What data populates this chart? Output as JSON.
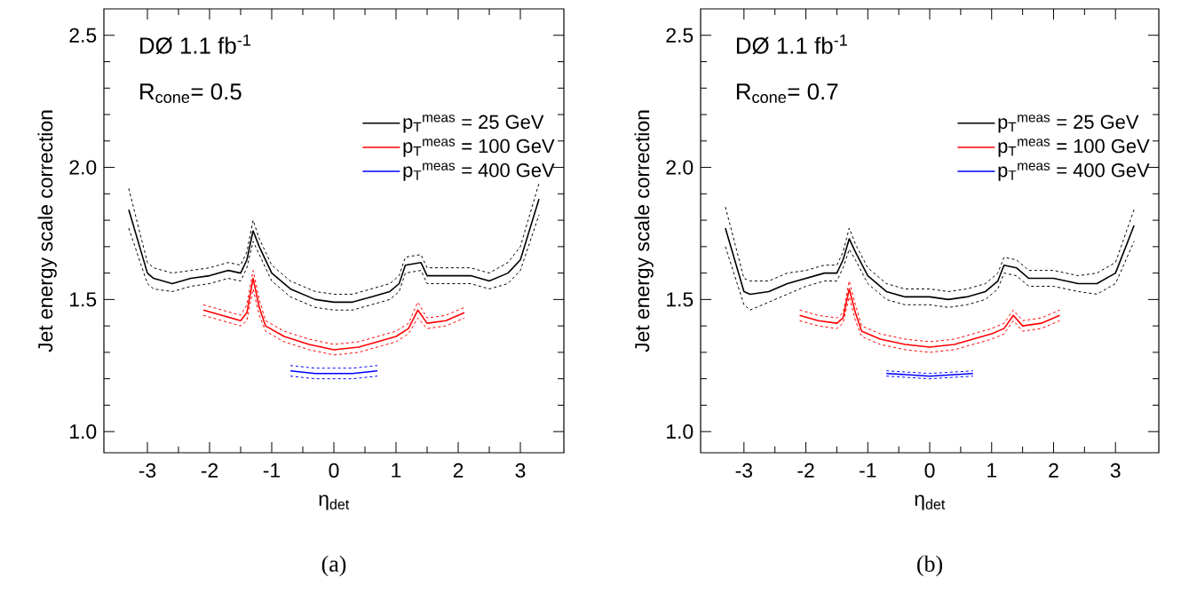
{
  "chart_data": [
    {
      "type": "line",
      "xlabel": "η$_{det}$",
      "ylabel": "Jet energy scale correction",
      "xlim": [
        -3.7,
        3.7
      ],
      "ylim": [
        0.92,
        2.6
      ],
      "xticks": [
        -3,
        -2,
        -1,
        0,
        1,
        2,
        3
      ],
      "yticks": [
        {
          "value": 1.0,
          "label": "1.0"
        },
        {
          "value": 1.5,
          "label": "1.5"
        },
        {
          "value": 2.0,
          "label": "2.0"
        },
        {
          "value": 2.5,
          "label": "2.5"
        }
      ],
      "legend": "top right",
      "line_style": "solid",
      "annotations": [
        "DØ  1.1 fb$^{-1}$",
        "R$_{cone}$= 0.5",
        "(a)"
      ],
      "series": [
        {
          "name": "p$_{T}$$^{meas}$ = 25 GeV",
          "color": "#000000",
          "x": [
            -3.3,
            -3.0,
            -2.9,
            -2.6,
            -2.3,
            -2.0,
            -1.7,
            -1.5,
            -1.4,
            -1.3,
            -1.2,
            -1.0,
            -0.7,
            -0.3,
            0,
            0.3,
            0.6,
            0.9,
            1.05,
            1.15,
            1.4,
            1.5,
            1.8,
            2.2,
            2.5,
            2.8,
            3.0,
            3.3
          ],
          "values": [
            1.84,
            1.6,
            1.58,
            1.56,
            1.58,
            1.59,
            1.61,
            1.6,
            1.65,
            1.76,
            1.7,
            1.6,
            1.54,
            1.5,
            1.49,
            1.49,
            1.51,
            1.53,
            1.56,
            1.63,
            1.64,
            1.59,
            1.59,
            1.59,
            1.57,
            1.6,
            1.65,
            1.88
          ]
        },
        {
          "name": "p$_{T}$$^{meas}$ = 100 GeV",
          "color": "#ff0000",
          "x": [
            -2.1,
            -1.8,
            -1.5,
            -1.4,
            -1.3,
            -1.2,
            -1.1,
            -0.8,
            -0.4,
            0,
            0.4,
            0.7,
            1.0,
            1.2,
            1.35,
            1.5,
            1.8,
            2.1
          ],
          "values": [
            1.46,
            1.44,
            1.42,
            1.45,
            1.58,
            1.47,
            1.4,
            1.36,
            1.33,
            1.31,
            1.32,
            1.34,
            1.36,
            1.39,
            1.46,
            1.41,
            1.42,
            1.45
          ]
        },
        {
          "name": "p$_{T}$$^{meas}$ = 400 GeV",
          "color": "#0000ff",
          "x": [
            -0.7,
            -0.3,
            0,
            0.3,
            0.7
          ],
          "values": [
            1.23,
            1.22,
            1.22,
            1.22,
            1.23
          ]
        },
        {
          "color": "#000000",
          "line_style": "dashed",
          "x": [
            -3.3,
            -3.0,
            -2.9,
            -2.6,
            -2.3,
            -2.0,
            -1.7,
            -1.5,
            -1.4,
            -1.3,
            -1.2,
            -1.0,
            -0.7,
            -0.3,
            0,
            0.3,
            0.6,
            0.9,
            1.05,
            1.15,
            1.4,
            1.5,
            1.8,
            2.2,
            2.5,
            2.8,
            3.0,
            3.3
          ],
          "values": [
            1.77,
            1.56,
            1.54,
            1.53,
            1.55,
            1.56,
            1.58,
            1.57,
            1.62,
            1.72,
            1.67,
            1.57,
            1.51,
            1.47,
            1.46,
            1.46,
            1.48,
            1.5,
            1.53,
            1.6,
            1.61,
            1.56,
            1.56,
            1.56,
            1.54,
            1.56,
            1.61,
            1.82
          ]
        },
        {
          "color": "#000000",
          "line_style": "dashed",
          "x": [
            -3.3,
            -3.0,
            -2.9,
            -2.6,
            -2.3,
            -2.0,
            -1.7,
            -1.5,
            -1.4,
            -1.3,
            -1.2,
            -1.0,
            -0.7,
            -0.3,
            0,
            0.3,
            0.6,
            0.9,
            1.05,
            1.15,
            1.4,
            1.5,
            1.8,
            2.2,
            2.5,
            2.8,
            3.0,
            3.3
          ],
          "values": [
            1.92,
            1.64,
            1.62,
            1.6,
            1.61,
            1.62,
            1.64,
            1.63,
            1.68,
            1.8,
            1.73,
            1.63,
            1.57,
            1.53,
            1.52,
            1.52,
            1.54,
            1.56,
            1.59,
            1.66,
            1.67,
            1.62,
            1.62,
            1.62,
            1.6,
            1.64,
            1.7,
            1.94
          ]
        },
        {
          "color": "#ff0000",
          "line_style": "dashed",
          "x": [
            -2.1,
            -1.8,
            -1.5,
            -1.4,
            -1.3,
            -1.2,
            -1.1,
            -0.8,
            -0.4,
            0,
            0.4,
            0.7,
            1.0,
            1.2,
            1.35,
            1.5,
            1.8,
            2.1
          ],
          "values": [
            1.44,
            1.42,
            1.4,
            1.42,
            1.54,
            1.44,
            1.38,
            1.34,
            1.31,
            1.29,
            1.3,
            1.32,
            1.34,
            1.37,
            1.43,
            1.39,
            1.4,
            1.43
          ]
        },
        {
          "color": "#ff0000",
          "line_style": "dashed",
          "x": [
            -2.1,
            -1.8,
            -1.5,
            -1.4,
            -1.3,
            -1.2,
            -1.1,
            -0.8,
            -0.4,
            0,
            0.4,
            0.7,
            1.0,
            1.2,
            1.35,
            1.5,
            1.8,
            2.1
          ],
          "values": [
            1.48,
            1.46,
            1.44,
            1.48,
            1.61,
            1.5,
            1.42,
            1.38,
            1.35,
            1.33,
            1.34,
            1.36,
            1.38,
            1.41,
            1.49,
            1.43,
            1.44,
            1.47
          ]
        },
        {
          "color": "#0000ff",
          "line_style": "dashed",
          "x": [
            -0.7,
            -0.3,
            0,
            0.3,
            0.7
          ],
          "values": [
            1.21,
            1.2,
            1.2,
            1.2,
            1.21
          ]
        },
        {
          "color": "#0000ff",
          "line_style": "dashed",
          "x": [
            -0.7,
            -0.3,
            0,
            0.3,
            0.7
          ],
          "values": [
            1.25,
            1.24,
            1.24,
            1.24,
            1.25
          ]
        }
      ]
    },
    {
      "type": "line",
      "xlabel": "η$_{det}$",
      "ylabel": "Jet energy scale correction",
      "xlim": [
        -3.7,
        3.7
      ],
      "ylim": [
        0.92,
        2.6
      ],
      "xticks": [
        -3,
        -2,
        -1,
        0,
        1,
        2,
        3
      ],
      "yticks": [
        {
          "value": 1.0,
          "label": "1.0"
        },
        {
          "value": 1.5,
          "label": "1.5"
        },
        {
          "value": 2.0,
          "label": "2.0"
        },
        {
          "value": 2.5,
          "label": "2.5"
        }
      ],
      "legend": "top right",
      "line_style": "solid",
      "annotations": [
        "DØ  1.1 fb$^{-1}$",
        "R$_{cone}$= 0.7",
        "(b)"
      ],
      "series": [
        {
          "name": "p$_{T}$$^{meas}$ = 25 GeV",
          "color": "#000000",
          "x": [
            -3.3,
            -3.0,
            -2.9,
            -2.6,
            -2.3,
            -2.0,
            -1.7,
            -1.5,
            -1.4,
            -1.3,
            -1.2,
            -1.0,
            -0.7,
            -0.4,
            0,
            0.3,
            0.6,
            0.9,
            1.1,
            1.2,
            1.4,
            1.6,
            2.0,
            2.4,
            2.7,
            3.0,
            3.3
          ],
          "values": [
            1.77,
            1.53,
            1.52,
            1.53,
            1.56,
            1.58,
            1.6,
            1.6,
            1.65,
            1.73,
            1.68,
            1.59,
            1.53,
            1.51,
            1.51,
            1.5,
            1.51,
            1.53,
            1.57,
            1.63,
            1.62,
            1.58,
            1.58,
            1.56,
            1.56,
            1.6,
            1.78
          ]
        },
        {
          "name": "p$_{T}$$^{meas}$ = 100 GeV",
          "color": "#ff0000",
          "x": [
            -2.1,
            -1.8,
            -1.5,
            -1.4,
            -1.3,
            -1.2,
            -1.1,
            -0.8,
            -0.4,
            0,
            0.4,
            0.7,
            1.0,
            1.2,
            1.35,
            1.5,
            1.8,
            2.1
          ],
          "values": [
            1.44,
            1.42,
            1.41,
            1.43,
            1.54,
            1.45,
            1.38,
            1.35,
            1.33,
            1.32,
            1.33,
            1.35,
            1.37,
            1.39,
            1.44,
            1.4,
            1.41,
            1.44
          ]
        },
        {
          "name": "p$_{T}$$^{meas}$ = 400 GeV",
          "color": "#0000ff",
          "x": [
            -0.7,
            0,
            0.7
          ],
          "values": [
            1.22,
            1.21,
            1.22
          ]
        },
        {
          "color": "#000000",
          "line_style": "dashed",
          "x": [
            -3.3,
            -3.0,
            -2.9,
            -2.6,
            -2.3,
            -2.0,
            -1.7,
            -1.5,
            -1.4,
            -1.3,
            -1.2,
            -1.0,
            -0.7,
            -0.4,
            0,
            0.3,
            0.6,
            0.9,
            1.1,
            1.2,
            1.4,
            1.6,
            2.0,
            2.4,
            2.7,
            3.0,
            3.3
          ],
          "values": [
            1.7,
            1.48,
            1.46,
            1.49,
            1.52,
            1.55,
            1.57,
            1.57,
            1.62,
            1.69,
            1.65,
            1.56,
            1.5,
            1.48,
            1.48,
            1.47,
            1.48,
            1.5,
            1.54,
            1.6,
            1.59,
            1.55,
            1.55,
            1.53,
            1.52,
            1.56,
            1.72
          ]
        },
        {
          "color": "#000000",
          "line_style": "dashed",
          "x": [
            -3.3,
            -3.0,
            -2.9,
            -2.6,
            -2.3,
            -2.0,
            -1.7,
            -1.5,
            -1.4,
            -1.3,
            -1.2,
            -1.0,
            -0.7,
            -0.4,
            0,
            0.3,
            0.6,
            0.9,
            1.1,
            1.2,
            1.4,
            1.6,
            2.0,
            2.4,
            2.7,
            3.0,
            3.3
          ],
          "values": [
            1.85,
            1.58,
            1.57,
            1.57,
            1.6,
            1.61,
            1.63,
            1.63,
            1.68,
            1.77,
            1.71,
            1.62,
            1.56,
            1.54,
            1.54,
            1.53,
            1.54,
            1.56,
            1.6,
            1.66,
            1.65,
            1.61,
            1.61,
            1.59,
            1.6,
            1.64,
            1.84
          ]
        },
        {
          "color": "#ff0000",
          "line_style": "dashed",
          "x": [
            -2.1,
            -1.8,
            -1.5,
            -1.4,
            -1.3,
            -1.2,
            -1.1,
            -0.8,
            -0.4,
            0,
            0.4,
            0.7,
            1.0,
            1.2,
            1.35,
            1.5,
            1.8,
            2.1
          ],
          "values": [
            1.42,
            1.4,
            1.39,
            1.41,
            1.51,
            1.42,
            1.36,
            1.33,
            1.31,
            1.3,
            1.31,
            1.33,
            1.35,
            1.37,
            1.42,
            1.38,
            1.39,
            1.42
          ]
        },
        {
          "color": "#ff0000",
          "line_style": "dashed",
          "x": [
            -2.1,
            -1.8,
            -1.5,
            -1.4,
            -1.3,
            -1.2,
            -1.1,
            -0.8,
            -0.4,
            0,
            0.4,
            0.7,
            1.0,
            1.2,
            1.35,
            1.5,
            1.8,
            2.1
          ],
          "values": [
            1.46,
            1.44,
            1.43,
            1.45,
            1.57,
            1.48,
            1.4,
            1.37,
            1.35,
            1.34,
            1.35,
            1.37,
            1.39,
            1.41,
            1.46,
            1.42,
            1.43,
            1.46
          ]
        },
        {
          "color": "#0000ff",
          "line_style": "dashed",
          "x": [
            -0.7,
            0,
            0.7
          ],
          "values": [
            1.21,
            1.2,
            1.21
          ]
        },
        {
          "color": "#0000ff",
          "line_style": "dashed",
          "x": [
            -0.7,
            0,
            0.7
          ],
          "values": [
            1.23,
            1.22,
            1.23
          ]
        }
      ]
    }
  ]
}
